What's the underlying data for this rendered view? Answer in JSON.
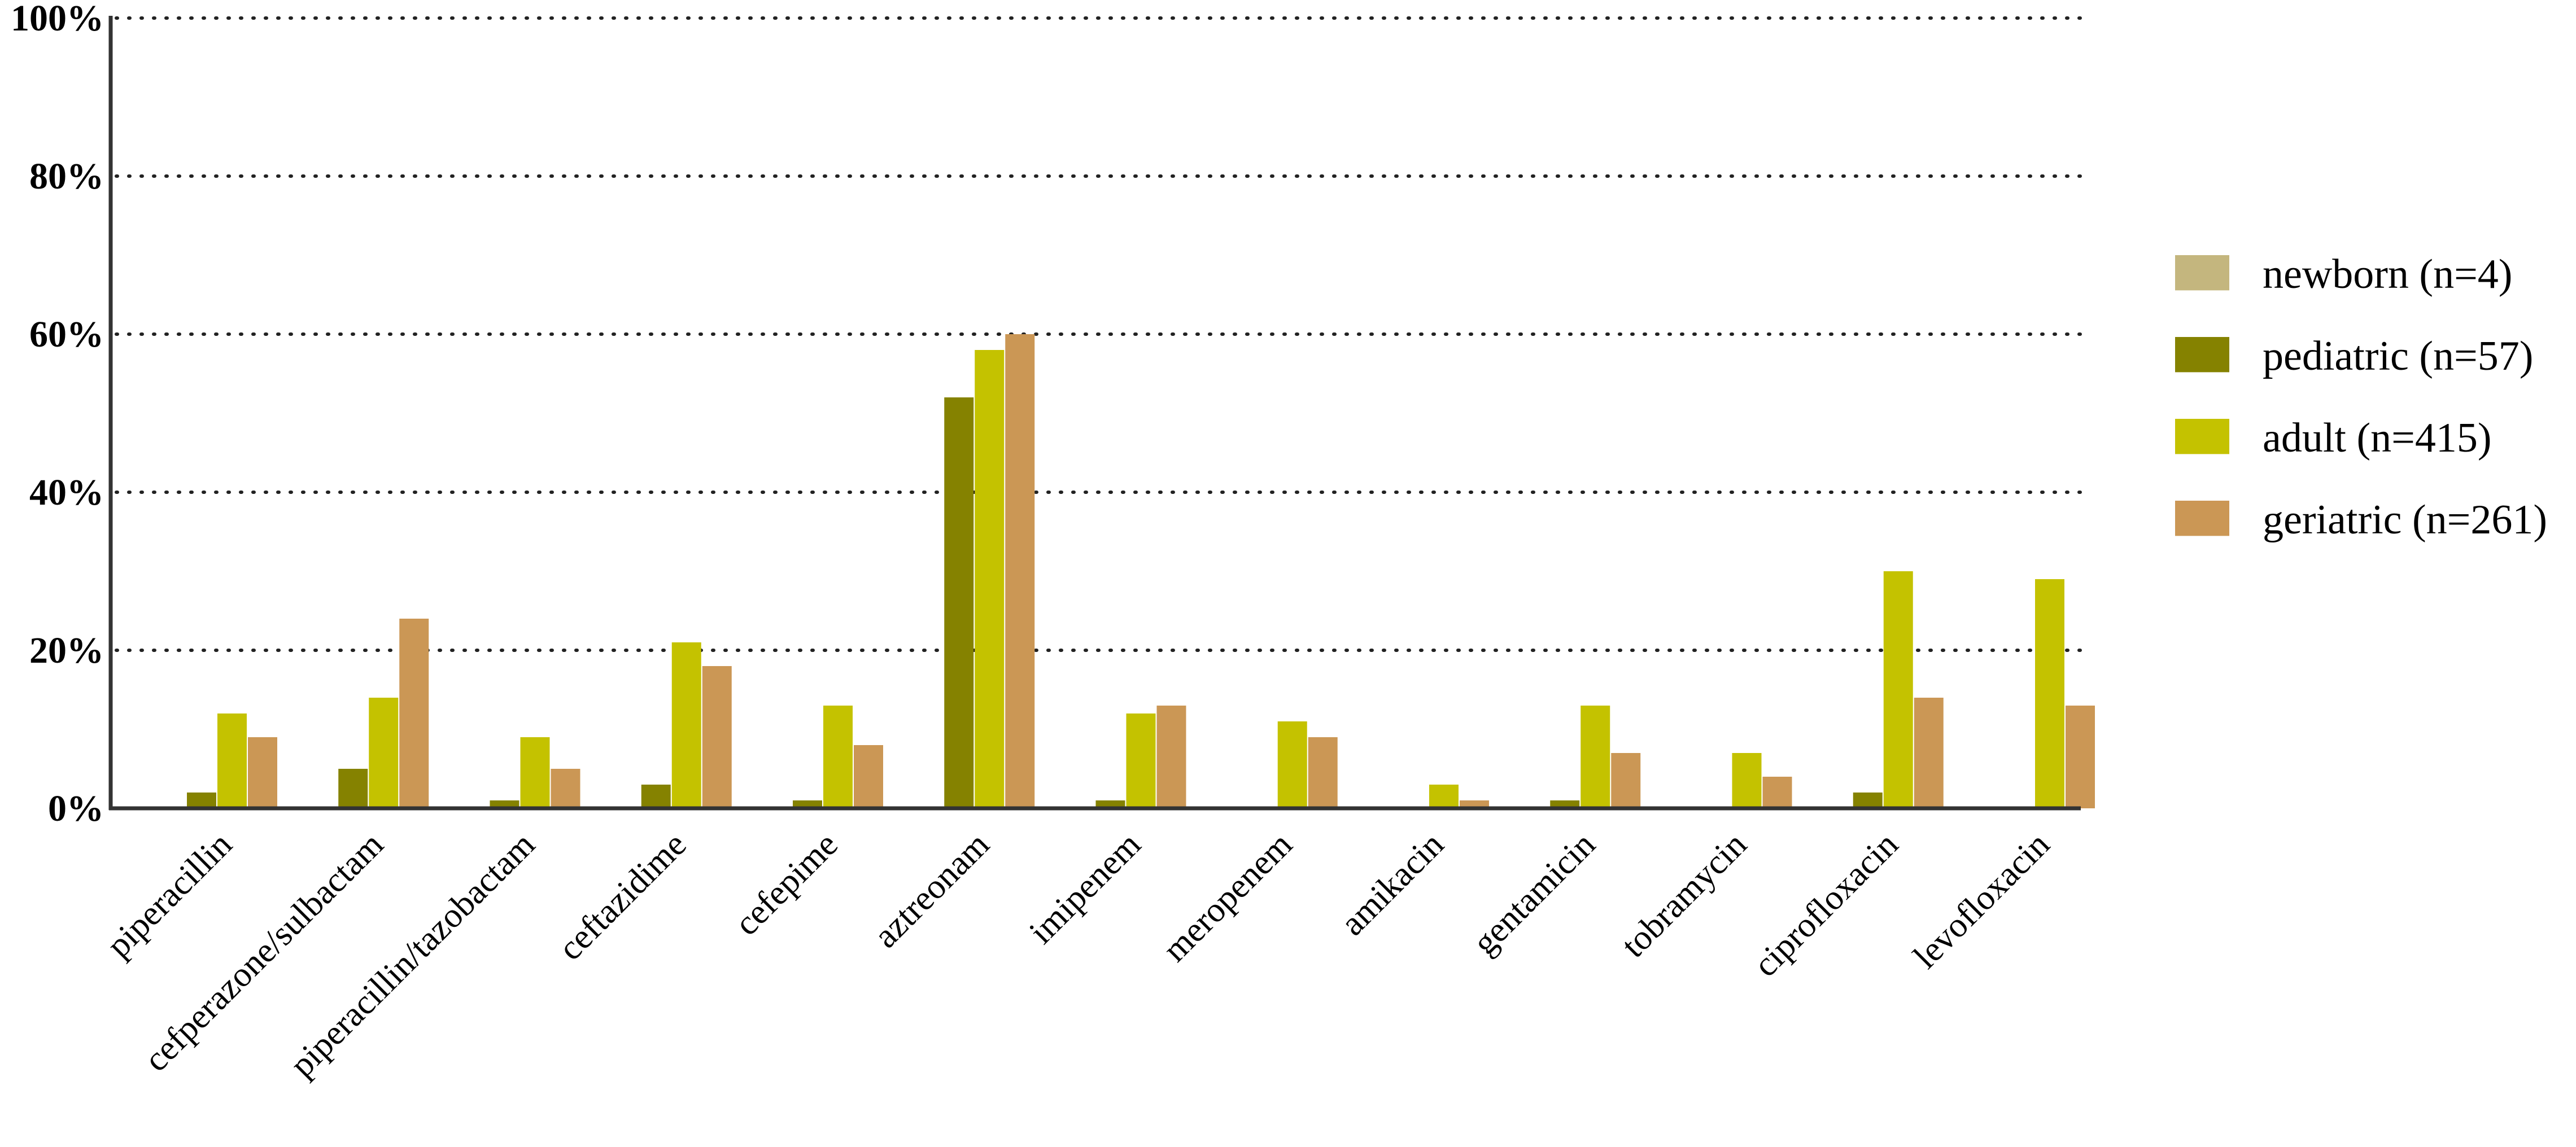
{
  "chart_data": {
    "type": "bar",
    "title": "",
    "xlabel": "",
    "ylabel": "",
    "ylim": [
      0,
      100
    ],
    "yticks": [
      0,
      20,
      40,
      60,
      80,
      100
    ],
    "ytick_labels": [
      "0%",
      "20%",
      "40%",
      "60%",
      "80%",
      "100%"
    ],
    "grid": "horizontal-dotted",
    "legend_position": "right",
    "categories": [
      "piperacillin",
      "cefperazone/sulbactam",
      "piperacillin/tazobactam",
      "ceftazidime",
      "cefepime",
      "aztreonam",
      "imipenem",
      "meropenem",
      "amikacin",
      "gentamicin",
      "tobramycin",
      "ciprofloxacin",
      "levofloxacin"
    ],
    "series": [
      {
        "name": "newborn (n=4)",
        "color": "#c4b67e",
        "values": [
          0,
          0,
          0,
          0,
          0,
          0,
          0,
          0,
          0,
          0,
          0,
          0,
          0
        ]
      },
      {
        "name": "pediatric (n=57)",
        "color": "#858200",
        "values": [
          2,
          5,
          1,
          3,
          1,
          52,
          1,
          0,
          0,
          1,
          0,
          2,
          0
        ]
      },
      {
        "name": "adult (n=415)",
        "color": "#c4c200",
        "values": [
          12,
          14,
          9,
          21,
          13,
          58,
          12,
          11,
          3,
          13,
          7,
          30,
          29
        ]
      },
      {
        "name": "geriatric (n=261)",
        "color": "#cb9755",
        "values": [
          9,
          24,
          5,
          18,
          8,
          60,
          13,
          9,
          1,
          7,
          4,
          14,
          13
        ]
      }
    ]
  }
}
